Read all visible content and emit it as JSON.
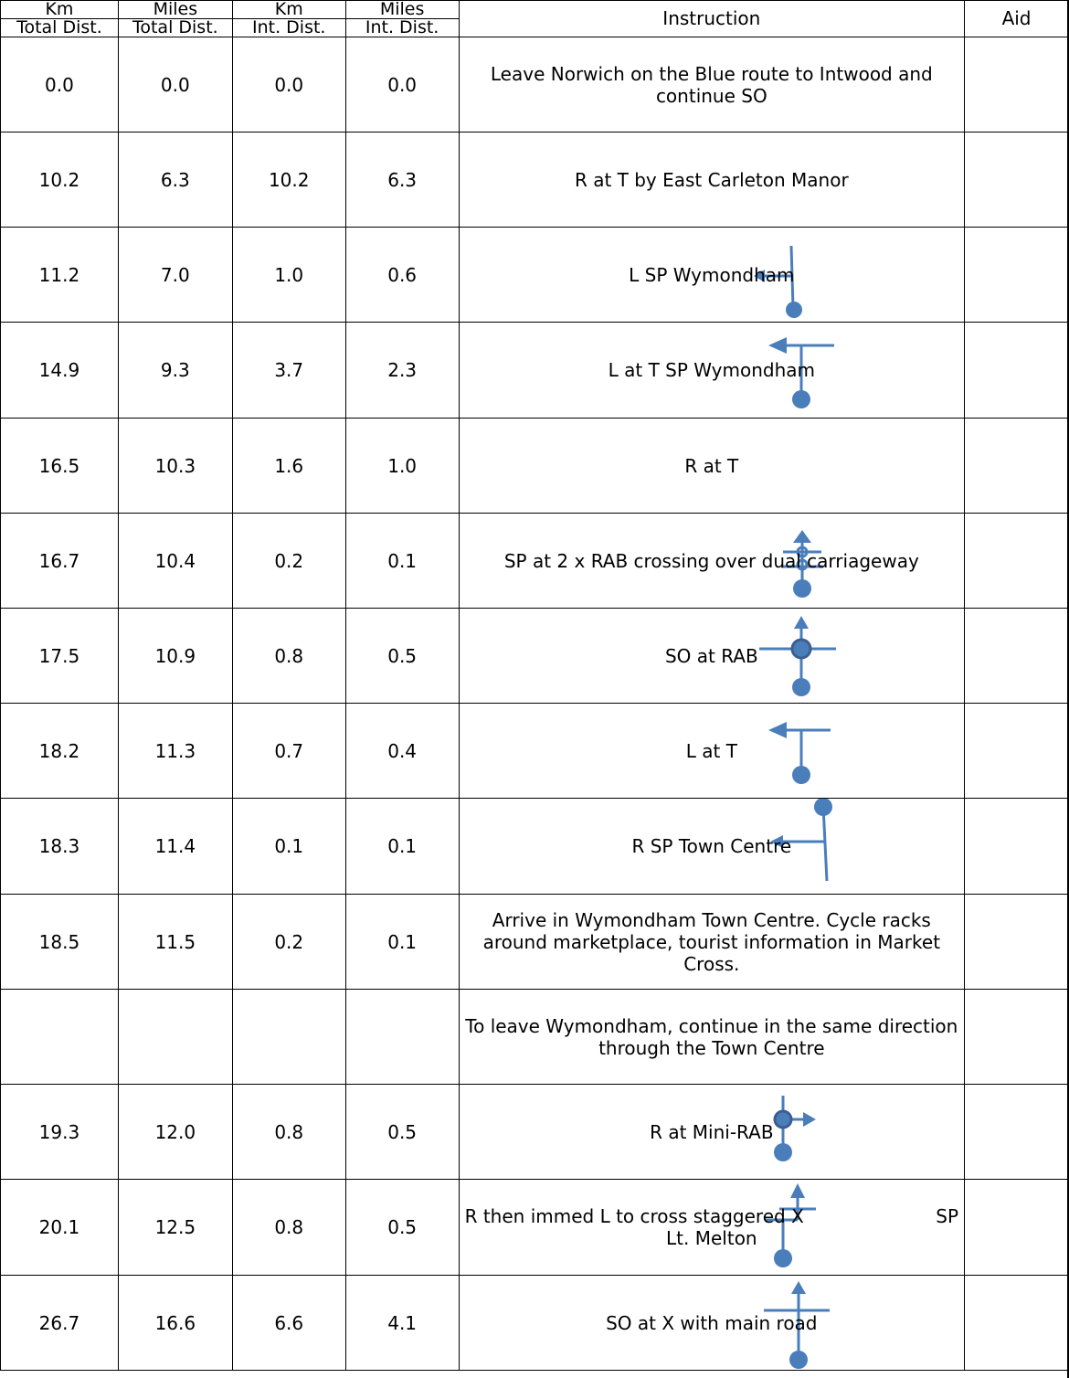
{
  "header": {
    "km_label": "Km",
    "miles_label": "Miles",
    "km_int_label": "Km",
    "miles_int_label": "Miles",
    "total_dist": "Total Dist.",
    "total_dist2": "Total Dist.",
    "int_dist": "Int. Dist.",
    "int_dist2": "Int. Dist.",
    "instruction": "Instruction",
    "aid": "Aid"
  },
  "rows": [
    {
      "km_total": "0.0",
      "mi_total": "0.0",
      "km_int": "0.0",
      "mi_int": "0.0",
      "instruction": "Leave Norwich on the Blue route to Intwood and continue SO",
      "icon": "none"
    },
    {
      "km_total": "10.2",
      "mi_total": "6.3",
      "km_int": "10.2",
      "mi_int": "6.3",
      "instruction": "R at T by East Carleton Manor",
      "icon": "none"
    },
    {
      "km_total": "11.2",
      "mi_total": "7.0",
      "km_int": "1.0",
      "mi_int": "0.6",
      "instruction": "L SP Wymondham",
      "icon": "turn-left-arrow-icon"
    },
    {
      "km_total": "14.9",
      "mi_total": "9.3",
      "km_int": "3.7",
      "mi_int": "2.3",
      "instruction": "L at T SP Wymondham",
      "icon": "t-junction-left-arrow-icon"
    },
    {
      "km_total": "16.5",
      "mi_total": "10.3",
      "km_int": "1.6",
      "mi_int": "1.0",
      "instruction": "R at T",
      "icon": "none"
    },
    {
      "km_total": "16.7",
      "mi_total": "10.4",
      "km_int": "0.2",
      "mi_int": "0.1",
      "instruction": "SP at 2 x RAB crossing over dual carriageway",
      "icon": "double-roundabout-arrow-icon"
    },
    {
      "km_total": "17.5",
      "mi_total": "10.9",
      "km_int": "0.8",
      "mi_int": "0.5",
      "instruction": "SO at RAB",
      "icon": "roundabout-straight-arrow-icon"
    },
    {
      "km_total": "18.2",
      "mi_total": "11.3",
      "km_int": "0.7",
      "mi_int": "0.4",
      "instruction": "L at T",
      "icon": "t-junction-left-arrow-icon"
    },
    {
      "km_total": "18.3",
      "mi_total": "11.4",
      "km_int": "0.1",
      "mi_int": "0.1",
      "instruction": "R SP Town Centre",
      "icon": "turn-right-arrow-icon"
    },
    {
      "km_total": "18.5",
      "mi_total": "11.5",
      "km_int": "0.2",
      "mi_int": "0.1",
      "instruction": "Arrive in Wymondham Town Centre.  Cycle racks around marketplace, tourist information in Market Cross.",
      "icon": "none"
    },
    {
      "km_total": "",
      "mi_total": "",
      "km_int": "",
      "mi_int": "",
      "instruction": "To leave Wymondham, continue in the same direction through the Town Centre",
      "icon": "none"
    },
    {
      "km_total": "19.3",
      "mi_total": "12.0",
      "km_int": "0.8",
      "mi_int": "0.5",
      "instruction": "R at Mini-RAB",
      "icon": "mini-roundabout-right-arrow-icon"
    },
    {
      "km_total": "20.1",
      "mi_total": "12.5",
      "km_int": "0.8",
      "mi_int": "0.5",
      "instruction_left": "R then immed L to cross staggered X",
      "instruction_right": "SP",
      "instruction_line2": "Lt. Melton",
      "icon": "staggered-crossroads-arrow-icon"
    },
    {
      "km_total": "26.7",
      "mi_total": "16.6",
      "km_int": "6.6",
      "mi_int": "4.1",
      "instruction": "SO at X with main road",
      "icon": "crossroads-straight-arrow-icon"
    }
  ],
  "colors": {
    "icon": "#4a7ebb",
    "border": "#000000"
  }
}
